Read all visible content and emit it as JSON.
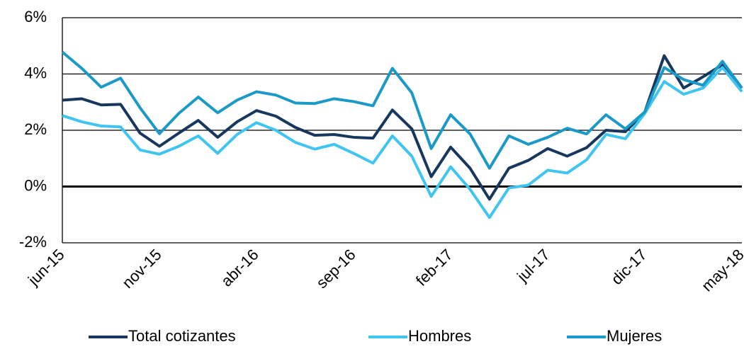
{
  "chart_data": {
    "type": "line",
    "categories": [
      "jun-15",
      null,
      null,
      null,
      null,
      "nov-15",
      null,
      null,
      null,
      null,
      "abr-16",
      null,
      null,
      null,
      null,
      "sep-16",
      null,
      null,
      null,
      null,
      "feb-17",
      null,
      null,
      null,
      null,
      "jul-17",
      null,
      null,
      null,
      null,
      "dic-17",
      null,
      null,
      null,
      null,
      "may-18"
    ],
    "series": [
      {
        "name": "Total cotizantes",
        "color": "#17375e",
        "values": [
          3.07,
          3.12,
          2.9,
          2.92,
          1.9,
          1.43,
          1.9,
          2.35,
          1.75,
          2.3,
          2.7,
          2.5,
          2.1,
          1.82,
          1.85,
          1.75,
          1.72,
          2.72,
          2.05,
          0.35,
          1.4,
          0.65,
          -0.45,
          0.65,
          0.93,
          1.35,
          1.08,
          1.38,
          2.0,
          1.95,
          2.65,
          4.65,
          3.5,
          3.9,
          4.33,
          3.5
        ]
      },
      {
        "name": "Hombres",
        "color": "#3fc5f0",
        "values": [
          2.52,
          2.3,
          2.15,
          2.12,
          1.3,
          1.15,
          1.43,
          1.8,
          1.18,
          1.85,
          2.27,
          2.0,
          1.57,
          1.33,
          1.5,
          1.18,
          0.83,
          1.8,
          1.08,
          -0.35,
          0.7,
          -0.1,
          -1.1,
          -0.05,
          0.05,
          0.58,
          0.48,
          0.95,
          1.85,
          1.7,
          2.6,
          3.73,
          3.28,
          3.5,
          4.23,
          3.37
        ]
      },
      {
        "name": "Mujeres",
        "color": "#1b9ac8",
        "values": [
          4.78,
          4.2,
          3.53,
          3.85,
          2.8,
          1.88,
          2.6,
          3.18,
          2.62,
          3.07,
          3.37,
          3.25,
          2.97,
          2.95,
          3.12,
          3.02,
          2.87,
          4.2,
          3.33,
          1.35,
          2.55,
          1.87,
          0.65,
          1.8,
          1.5,
          1.75,
          2.07,
          1.87,
          2.55,
          2.05,
          2.65,
          4.23,
          3.8,
          3.6,
          4.45,
          3.5
        ]
      }
    ],
    "ylim": [
      -2,
      6
    ],
    "yticks": [
      {
        "value": -2,
        "label": "-2%"
      },
      {
        "value": 0,
        "label": "0%"
      },
      {
        "value": 2,
        "label": "2%"
      },
      {
        "value": 4,
        "label": "4%"
      },
      {
        "value": 6,
        "label": "6%"
      }
    ],
    "grid": true,
    "legend": "bottom"
  }
}
